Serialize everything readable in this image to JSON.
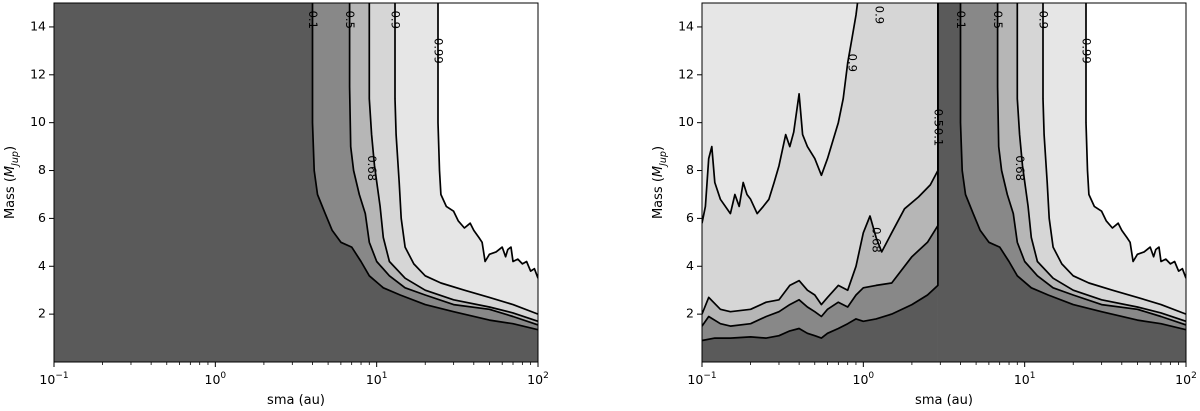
{
  "chart_data": [
    {
      "type": "contour",
      "panel": "left",
      "xlabel": "sma (au)",
      "ylabel_main": "Mass (",
      "ylabel_math": "M",
      "ylabel_sub": "Jup",
      "ylabel_close": ")",
      "xscale": "log",
      "xlim": [
        0.1,
        100
      ],
      "ylim": [
        0,
        15
      ],
      "xticks": [
        {
          "base": "10",
          "exp": "−1",
          "value": 0.1
        },
        {
          "base": "10",
          "exp": "0",
          "value": 1
        },
        {
          "base": "10",
          "exp": "1",
          "value": 10
        },
        {
          "base": "10",
          "exp": "2",
          "value": 100
        }
      ],
      "yticks": [
        "2",
        "4",
        "6",
        "8",
        "10",
        "12",
        "14"
      ],
      "fill_colors": [
        "#5a5a5a",
        "#888888",
        "#b6b6b6",
        "#d6d6d6",
        "#e6e6e6",
        "#ffffff"
      ],
      "levels": [
        {
          "level": "0.1",
          "points": [
            [
              4.0,
              15
            ],
            [
              4.0,
              10
            ],
            [
              4.1,
              8
            ],
            [
              4.3,
              7
            ],
            [
              4.8,
              6.2
            ],
            [
              5.3,
              5.5
            ],
            [
              6,
              5
            ],
            [
              7,
              4.8
            ],
            [
              8,
              4.2
            ],
            [
              9,
              3.6
            ],
            [
              11,
              3.1
            ],
            [
              14,
              2.8
            ],
            [
              20,
              2.4
            ],
            [
              30,
              2.1
            ],
            [
              50,
              1.75
            ],
            [
              70,
              1.6
            ],
            [
              100,
              1.35
            ]
          ]
        },
        {
          "level": "0.5",
          "points": [
            [
              6.8,
              15
            ],
            [
              6.8,
              11.5
            ],
            [
              6.9,
              9
            ],
            [
              7.2,
              8
            ],
            [
              7.8,
              7
            ],
            [
              8.5,
              6.2
            ],
            [
              9,
              5
            ],
            [
              10,
              4.2
            ],
            [
              12,
              3.6
            ],
            [
              15,
              3.1
            ],
            [
              20,
              2.8
            ],
            [
              30,
              2.4
            ],
            [
              50,
              2.2
            ],
            [
              70,
              1.9
            ],
            [
              100,
              1.55
            ]
          ]
        },
        {
          "level": "0.68",
          "points": [
            [
              9,
              15
            ],
            [
              9,
              11
            ],
            [
              9.3,
              9.5
            ],
            [
              9.7,
              8.2
            ],
            [
              10.5,
              6.5
            ],
            [
              11,
              5.2
            ],
            [
              12,
              4.2
            ],
            [
              15,
              3.5
            ],
            [
              20,
              3
            ],
            [
              30,
              2.6
            ],
            [
              50,
              2.3
            ],
            [
              70,
              2.05
            ],
            [
              100,
              1.7
            ]
          ]
        },
        {
          "level": "0.9",
          "points": [
            [
              13,
              15
            ],
            [
              13,
              11
            ],
            [
              13.2,
              9.5
            ],
            [
              13.8,
              7.5
            ],
            [
              14.2,
              6
            ],
            [
              15,
              4.8
            ],
            [
              17,
              4.1
            ],
            [
              20,
              3.6
            ],
            [
              25,
              3.3
            ],
            [
              35,
              3
            ],
            [
              50,
              2.7
            ],
            [
              70,
              2.4
            ],
            [
              100,
              2.0
            ]
          ]
        },
        {
          "level": "0.99",
          "points": [
            [
              24,
              15
            ],
            [
              24,
              10
            ],
            [
              24.5,
              8
            ],
            [
              25,
              7
            ],
            [
              27,
              6.5
            ],
            [
              30,
              6.3
            ],
            [
              32,
              5.9
            ],
            [
              35,
              5.6
            ],
            [
              38,
              5.8
            ],
            [
              40,
              5.5
            ],
            [
              43,
              5.2
            ],
            [
              45,
              5.0
            ],
            [
              47,
              4.2
            ],
            [
              50,
              4.5
            ],
            [
              55,
              4.6
            ],
            [
              60,
              4.8
            ],
            [
              63,
              4.4
            ],
            [
              65,
              4.7
            ],
            [
              68,
              4.8
            ],
            [
              70,
              4.2
            ],
            [
              75,
              4.3
            ],
            [
              80,
              4.1
            ],
            [
              85,
              4.2
            ],
            [
              90,
              3.8
            ],
            [
              95,
              3.9
            ],
            [
              100,
              3.5
            ]
          ]
        }
      ],
      "labels": [
        {
          "text": "0.1",
          "x": 4.0,
          "y": 14.3
        },
        {
          "text": "0.5",
          "x": 6.8,
          "y": 14.3
        },
        {
          "text": "0.9",
          "x": 13.0,
          "y": 14.3
        },
        {
          "text": "0.99",
          "x": 24.0,
          "y": 13.0
        },
        {
          "text": "0.68",
          "x": 9.3,
          "y": 8.1
        }
      ]
    },
    {
      "type": "contour",
      "panel": "right",
      "xlabel": "sma (au)",
      "ylabel_main": "Mass (",
      "ylabel_math": "M",
      "ylabel_sub": "Jup",
      "ylabel_close": ")",
      "xscale": "log",
      "xlim": [
        0.1,
        100
      ],
      "ylim": [
        0,
        15
      ],
      "xticks": [
        {
          "base": "10",
          "exp": "−1",
          "value": 0.1
        },
        {
          "base": "10",
          "exp": "0",
          "value": 1
        },
        {
          "base": "10",
          "exp": "1",
          "value": 10
        },
        {
          "base": "10",
          "exp": "2",
          "value": 100
        }
      ],
      "yticks": [
        "2",
        "4",
        "6",
        "8",
        "10",
        "12",
        "14"
      ],
      "fill_colors": [
        "#5a5a5a",
        "#888888",
        "#b6b6b6",
        "#d6d6d6",
        "#e6e6e6",
        "#ffffff"
      ],
      "levels": [
        {
          "level": "0.1",
          "points": [
            [
              0.1,
              0.9
            ],
            [
              0.12,
              1.0
            ],
            [
              0.15,
              1.0
            ],
            [
              0.2,
              1.05
            ],
            [
              0.25,
              1.0
            ],
            [
              0.3,
              1.1
            ],
            [
              0.35,
              1.3
            ],
            [
              0.4,
              1.4
            ],
            [
              0.45,
              1.2
            ],
            [
              0.5,
              1.1
            ],
            [
              0.55,
              1.0
            ],
            [
              0.6,
              1.2
            ],
            [
              0.7,
              1.4
            ],
            [
              0.8,
              1.6
            ],
            [
              0.9,
              1.8
            ],
            [
              1.0,
              1.7
            ],
            [
              1.2,
              1.8
            ],
            [
              1.5,
              2.0
            ],
            [
              2.0,
              2.4
            ],
            [
              2.5,
              2.8
            ],
            [
              2.9,
              3.2
            ],
            [
              2.9,
              15
            ]
          ]
        },
        {
          "level": "0.5",
          "points": [
            [
              0.1,
              1.5
            ],
            [
              0.11,
              1.9
            ],
            [
              0.13,
              1.6
            ],
            [
              0.15,
              1.5
            ],
            [
              0.2,
              1.6
            ],
            [
              0.25,
              1.9
            ],
            [
              0.3,
              2.1
            ],
            [
              0.35,
              2.4
            ],
            [
              0.4,
              2.6
            ],
            [
              0.45,
              2.3
            ],
            [
              0.5,
              2.1
            ],
            [
              0.55,
              1.9
            ],
            [
              0.6,
              2.2
            ],
            [
              0.7,
              2.5
            ],
            [
              0.8,
              2.3
            ],
            [
              0.9,
              2.8
            ],
            [
              1.0,
              3.1
            ],
            [
              1.2,
              3.2
            ],
            [
              1.5,
              3.3
            ],
            [
              2.0,
              4.4
            ],
            [
              2.5,
              5.0
            ],
            [
              2.9,
              5.7
            ],
            [
              2.9,
              15
            ]
          ]
        },
        {
          "level": "0.68",
          "points": [
            [
              0.1,
              2.0
            ],
            [
              0.11,
              2.7
            ],
            [
              0.13,
              2.2
            ],
            [
              0.15,
              2.1
            ],
            [
              0.2,
              2.2
            ],
            [
              0.25,
              2.5
            ],
            [
              0.3,
              2.6
            ],
            [
              0.35,
              3.2
            ],
            [
              0.4,
              3.4
            ],
            [
              0.45,
              3.0
            ],
            [
              0.5,
              2.8
            ],
            [
              0.55,
              2.4
            ],
            [
              0.6,
              2.7
            ],
            [
              0.7,
              3.2
            ],
            [
              0.8,
              3.0
            ],
            [
              0.9,
              4.0
            ],
            [
              1.0,
              5.4
            ],
            [
              1.1,
              6.1
            ],
            [
              1.2,
              5.2
            ],
            [
              1.3,
              4.6
            ],
            [
              1.5,
              5.4
            ],
            [
              1.8,
              6.4
            ],
            [
              2.2,
              6.9
            ],
            [
              2.6,
              7.4
            ],
            [
              2.9,
              8.0
            ],
            [
              2.9,
              15
            ]
          ]
        },
        {
          "level": "0.9",
          "points": [
            [
              0.1,
              5.8
            ],
            [
              0.105,
              6.5
            ],
            [
              0.11,
              8.5
            ],
            [
              0.115,
              9.0
            ],
            [
              0.12,
              7.5
            ],
            [
              0.13,
              6.8
            ],
            [
              0.15,
              6.2
            ],
            [
              0.16,
              7.0
            ],
            [
              0.17,
              6.5
            ],
            [
              0.18,
              7.5
            ],
            [
              0.19,
              7.0
            ],
            [
              0.2,
              6.8
            ],
            [
              0.22,
              6.2
            ],
            [
              0.24,
              6.5
            ],
            [
              0.26,
              6.8
            ],
            [
              0.28,
              7.5
            ],
            [
              0.3,
              8.2
            ],
            [
              0.33,
              9.5
            ],
            [
              0.35,
              9.0
            ],
            [
              0.37,
              9.6
            ],
            [
              0.4,
              11.2
            ],
            [
              0.42,
              9.5
            ],
            [
              0.45,
              9.0
            ],
            [
              0.5,
              8.5
            ],
            [
              0.55,
              7.8
            ],
            [
              0.6,
              8.5
            ],
            [
              0.7,
              10
            ],
            [
              0.75,
              11
            ],
            [
              0.8,
              12.5
            ],
            [
              0.85,
              13.5
            ],
            [
              0.9,
              14.5
            ],
            [
              0.92,
              15
            ]
          ]
        },
        {
          "level": "0.99",
          "points": [
            [
              24,
              15
            ],
            [
              24,
              10
            ],
            [
              24.5,
              8
            ],
            [
              25,
              7
            ],
            [
              27,
              6.5
            ],
            [
              30,
              6.3
            ],
            [
              32,
              5.9
            ],
            [
              35,
              5.6
            ],
            [
              38,
              5.8
            ],
            [
              40,
              5.5
            ],
            [
              43,
              5.2
            ],
            [
              45,
              5.0
            ],
            [
              47,
              4.2
            ],
            [
              50,
              4.5
            ],
            [
              55,
              4.6
            ],
            [
              60,
              4.8
            ],
            [
              63,
              4.4
            ],
            [
              65,
              4.7
            ],
            [
              68,
              4.8
            ],
            [
              70,
              4.2
            ],
            [
              75,
              4.3
            ],
            [
              80,
              4.1
            ],
            [
              85,
              4.2
            ],
            [
              90,
              3.8
            ],
            [
              95,
              3.9
            ],
            [
              100,
              3.5
            ]
          ]
        }
      ],
      "labels": [
        {
          "text": "0.9",
          "x": 0.85,
          "y": 12.5
        },
        {
          "text": "0.9",
          "x": 1.25,
          "y": 14.5
        },
        {
          "text": "0.5",
          "x": 2.9,
          "y": 10.2
        },
        {
          "text": "0.1",
          "x": 2.9,
          "y": 9.4
        },
        {
          "text": "0.68",
          "x": 1.2,
          "y": 5.1
        },
        {
          "text": "0.1",
          "x": 4.0,
          "y": 14.3
        },
        {
          "text": "0.5",
          "x": 6.8,
          "y": 14.3
        },
        {
          "text": "0.9",
          "x": 13.0,
          "y": 14.3
        },
        {
          "text": "0.99",
          "x": 24.0,
          "y": 13.0
        },
        {
          "text": "0.68",
          "x": 9.3,
          "y": 8.1
        }
      ]
    }
  ]
}
